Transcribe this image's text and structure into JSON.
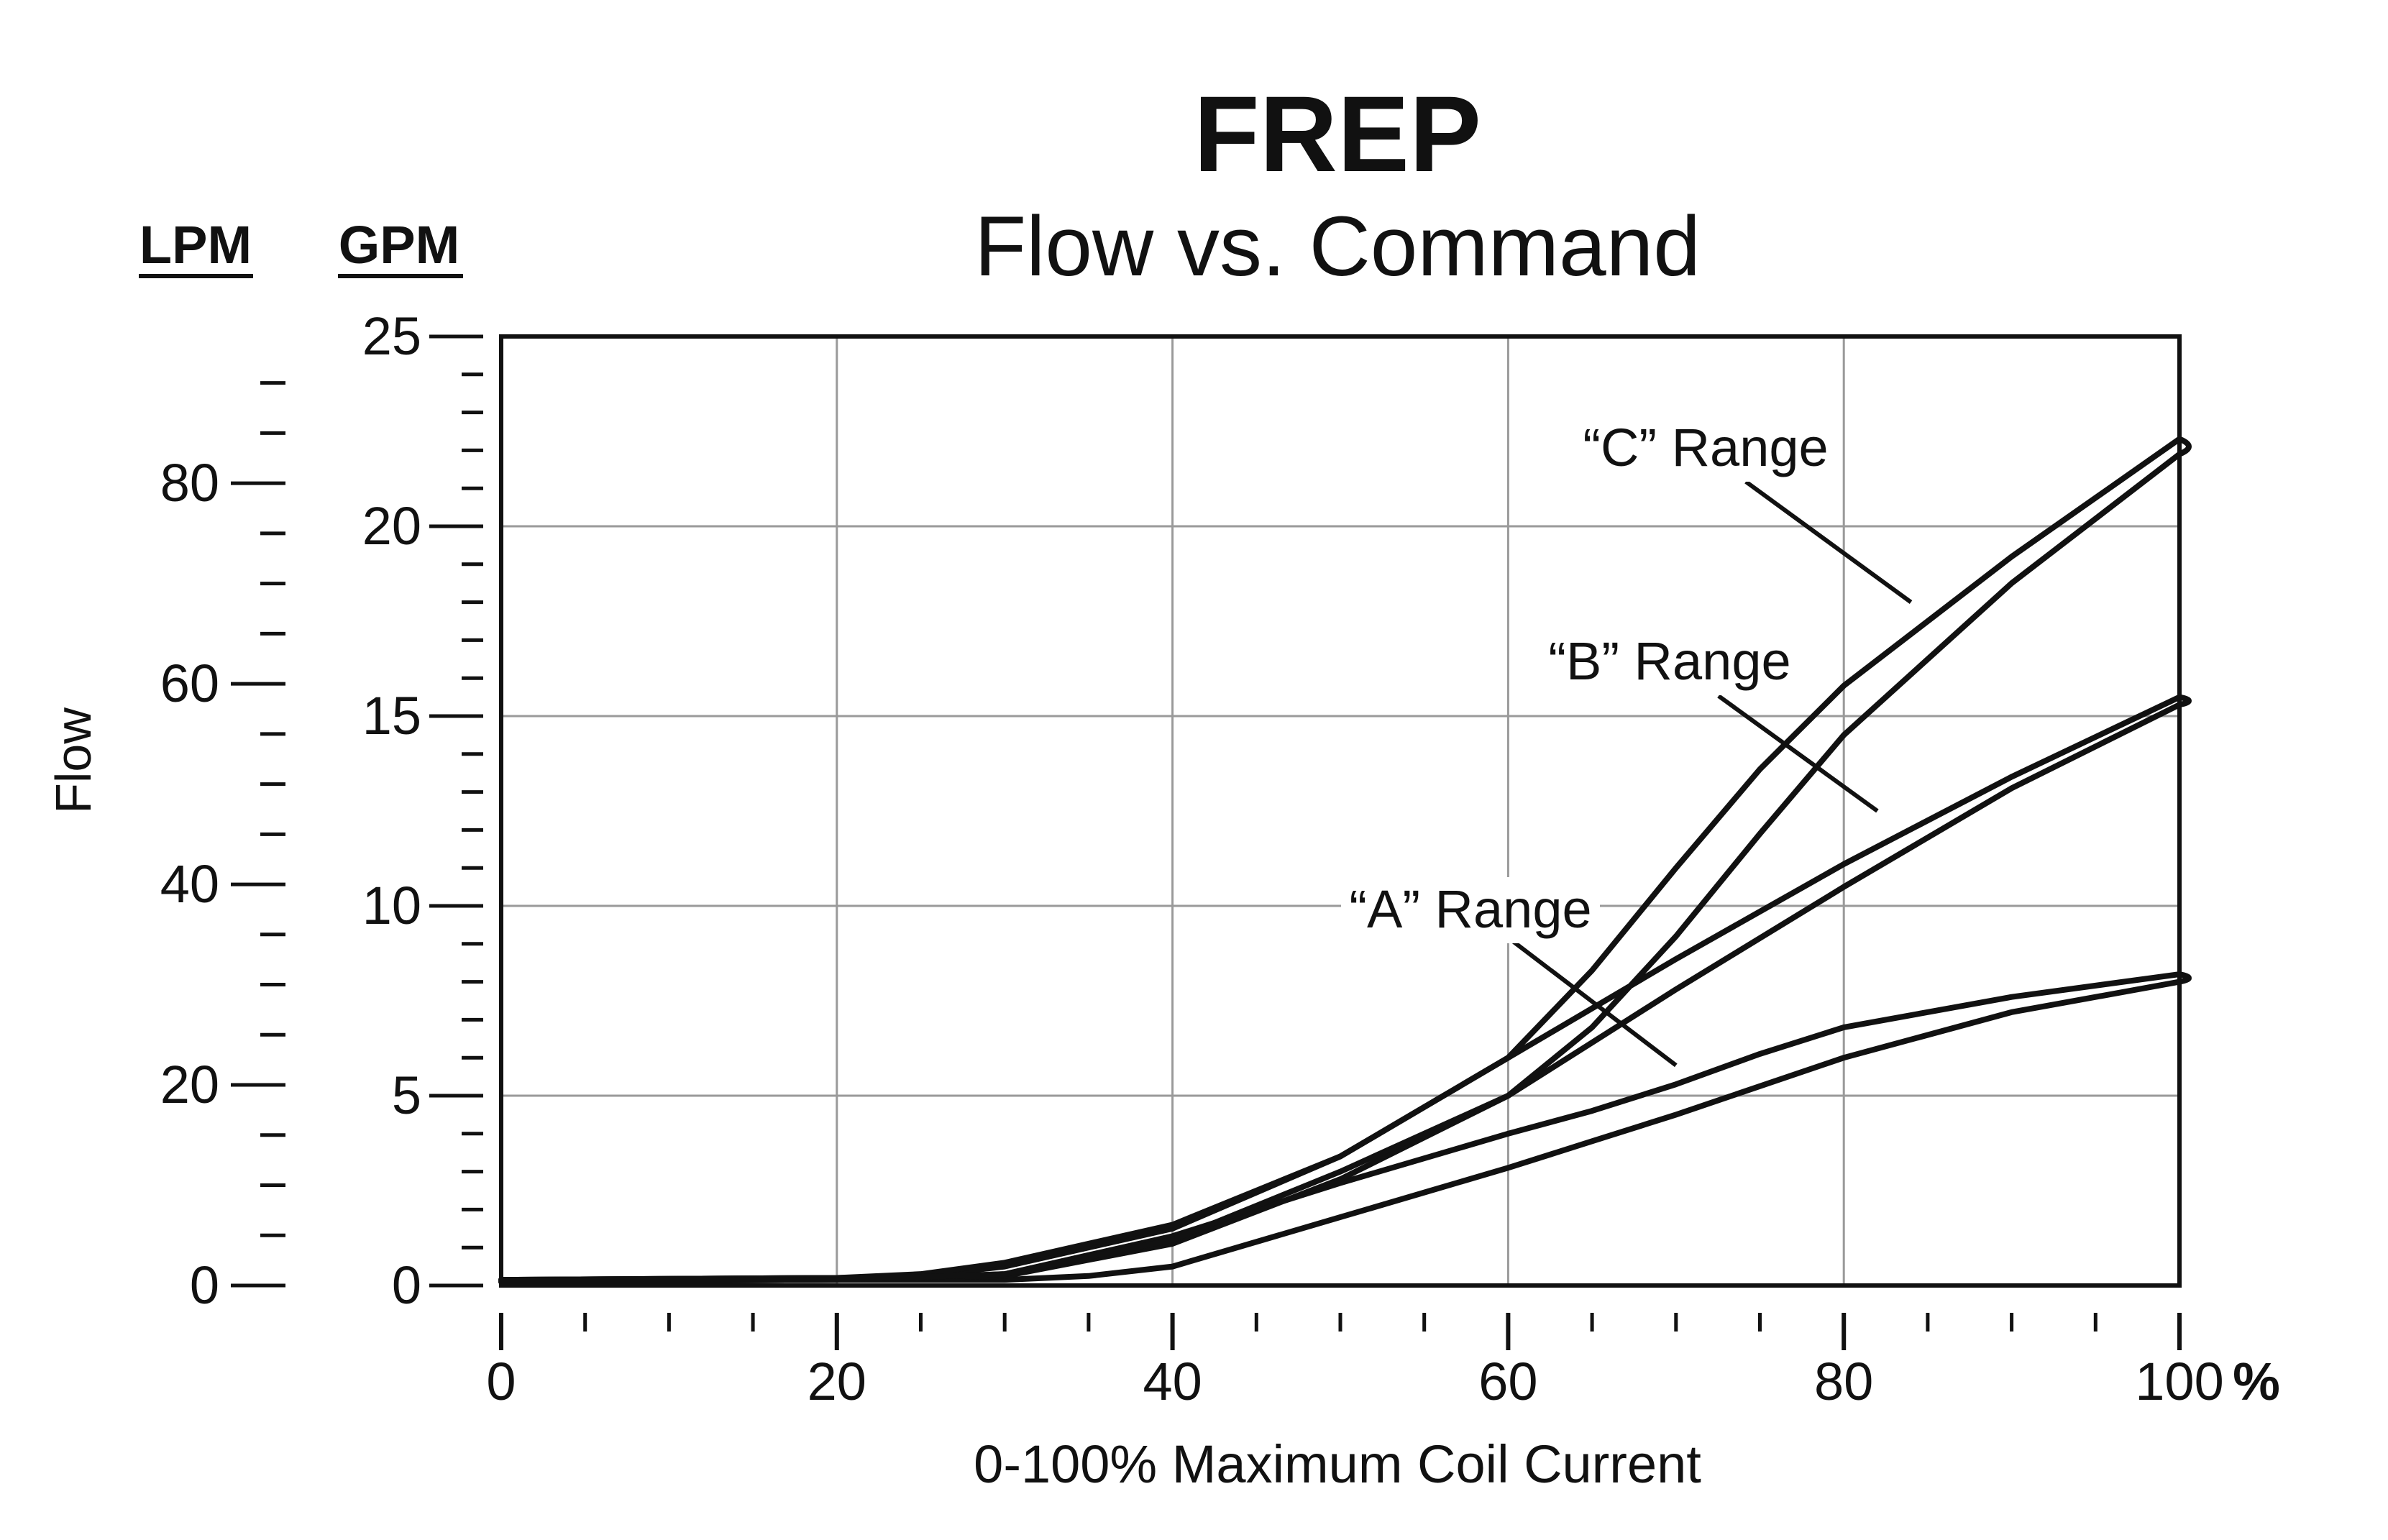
{
  "chart_data": {
    "type": "line",
    "title": "FREP",
    "subtitle": "Flow vs. Command",
    "xlabel": "0-100% Maximum Coil Current",
    "x_unit": "%",
    "ylabel": "Flow",
    "y_unit_left": "LPM",
    "y_unit_right": "GPM",
    "xlim": [
      0,
      100
    ],
    "ylim": [
      0,
      25
    ],
    "lpm_ticks": [
      0,
      20,
      40,
      60,
      80
    ],
    "gpm_ticks": [
      0,
      5,
      10,
      15,
      20,
      25
    ],
    "x_ticks": [
      0,
      20,
      40,
      60,
      80,
      100
    ],
    "grid": true,
    "series": [
      {
        "name": "“A” Range",
        "upper": {
          "x": [
            0,
            20,
            25,
            30,
            40,
            50,
            60,
            65,
            70,
            75,
            80,
            90,
            100
          ],
          "y": [
            0.15,
            0.2,
            0.2,
            0.3,
            1.3,
            2.7,
            4.0,
            4.6,
            5.3,
            6.1,
            6.8,
            7.6,
            8.2
          ]
        },
        "lower": {
          "x": [
            0,
            20,
            30,
            35,
            40,
            50,
            60,
            65,
            70,
            80,
            90,
            100
          ],
          "y": [
            0.1,
            0.15,
            0.15,
            0.25,
            0.5,
            1.8,
            3.1,
            3.8,
            4.5,
            6.0,
            7.2,
            8.0
          ]
        }
      },
      {
        "name": "“B” Range",
        "upper": {
          "x": [
            0,
            20,
            25,
            30,
            40,
            50,
            60,
            65,
            70,
            80,
            90,
            100
          ],
          "y": [
            0.15,
            0.2,
            0.25,
            0.5,
            1.5,
            3.4,
            6.0,
            7.3,
            8.6,
            11.1,
            13.4,
            15.5
          ]
        },
        "lower": {
          "x": [
            0,
            20,
            30,
            40,
            50,
            60,
            65,
            70,
            80,
            90,
            100
          ],
          "y": [
            0.1,
            0.15,
            0.25,
            1.1,
            2.8,
            5.0,
            6.4,
            7.8,
            10.5,
            13.1,
            15.3
          ]
        }
      },
      {
        "name": "“C” Range",
        "upper": {
          "x": [
            0,
            20,
            25,
            30,
            40,
            50,
            60,
            65,
            70,
            75,
            80,
            90,
            100
          ],
          "y": [
            0.15,
            0.2,
            0.3,
            0.6,
            1.6,
            3.4,
            6.0,
            8.3,
            11.0,
            13.6,
            15.8,
            19.2,
            22.3
          ]
        },
        "lower": {
          "x": [
            0,
            20,
            30,
            40,
            50,
            60,
            65,
            70,
            75,
            80,
            90,
            100
          ],
          "y": [
            0.1,
            0.15,
            0.3,
            1.2,
            3.0,
            5.0,
            6.8,
            9.2,
            11.9,
            14.5,
            18.5,
            21.9
          ]
        }
      }
    ],
    "annotations": [
      {
        "text": "“C” Range",
        "series": "“C” Range",
        "pointer_to": {
          "x": 84,
          "y": 18
        }
      },
      {
        "text": "“B” Range",
        "series": "“B” Range",
        "pointer_to": {
          "x": 82,
          "y": 12.5
        }
      },
      {
        "text": "“A” Range",
        "series": "“A” Range",
        "pointer_to": {
          "x": 70,
          "y": 5.8
        }
      }
    ]
  }
}
